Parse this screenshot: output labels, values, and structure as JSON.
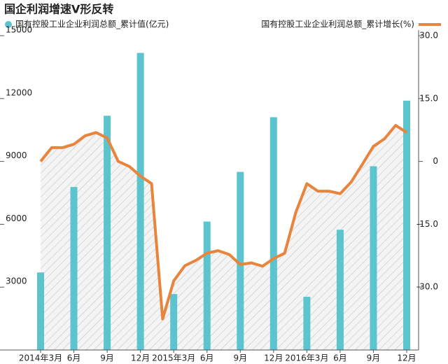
{
  "chart_data": {
    "type": "bar-line",
    "title": "国企利润增速V形反转",
    "categories": [
      "2014年3月",
      null,
      null,
      "6月",
      null,
      null,
      "9月",
      null,
      null,
      "12月",
      null,
      null,
      "2015年3月",
      null,
      null,
      "6月",
      null,
      null,
      "9月",
      null,
      null,
      "12月",
      null,
      null,
      "2016年3月",
      null,
      null,
      "6月",
      null,
      null,
      "9月",
      null,
      null,
      "12月"
    ],
    "series": [
      {
        "name": "国有控股工业企业利润总额_累计值(亿元)",
        "type": "bar",
        "color": "#5bc4cf",
        "values": [
          3700,
          null,
          null,
          7780,
          null,
          null,
          11180,
          null,
          null,
          14180,
          null,
          null,
          2670,
          null,
          null,
          6130,
          null,
          null,
          8500,
          null,
          null,
          11110,
          null,
          null,
          2540,
          null,
          null,
          5740,
          null,
          null,
          8770,
          null,
          null,
          11900
        ]
      },
      {
        "name": "国有控股工业企业利润总额_累计增长(%)",
        "type": "line",
        "axis": "y2",
        "color": "#e8843c",
        "values": [
          0,
          3.3,
          3.3,
          4.1,
          6.1,
          6.9,
          5.6,
          0,
          -1.2,
          -3.5,
          -5.3,
          -37.6,
          -28.5,
          -24.9,
          -23.6,
          -21.9,
          -21.3,
          -22.2,
          -24.6,
          -24.2,
          -25.0,
          -23.2,
          -21.9,
          -12.2,
          -5.3,
          -7.1,
          -7.1,
          -7.7,
          -4.9,
          -0.7,
          3.6,
          5.4,
          8.6,
          6.9
        ]
      }
    ],
    "ylim": [
      0,
      15000
    ],
    "yticks": [
      3000,
      6000,
      9000,
      12000,
      15000
    ],
    "y2lim": [
      -45,
      30
    ],
    "y2ticks": [
      {
        "value": -30,
        "label": "-30.0"
      },
      {
        "value": -15,
        "label": "-15.0"
      },
      0,
      {
        "value": 15,
        "label": "15.0"
      },
      {
        "value": 30,
        "label": "30.0"
      }
    ]
  }
}
